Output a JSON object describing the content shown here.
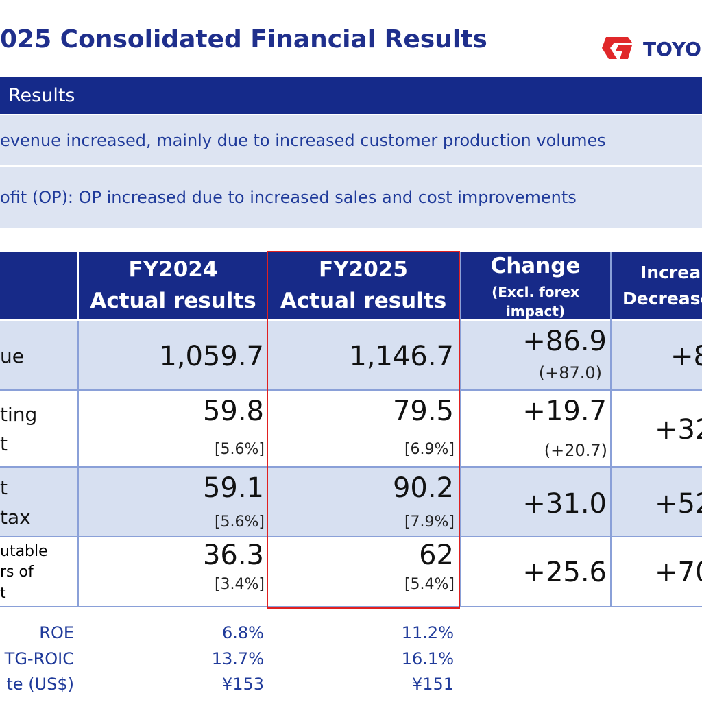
{
  "header": {
    "title": "025 Consolidated Financial Results",
    "logo": "TOYO"
  },
  "section": {
    "title": "Results",
    "bullets": [
      "evenue increased, mainly due to increased customer production volumes",
      "ofit (OP): OP increased due to increased sales and cost improvements"
    ]
  },
  "table": {
    "columns": [
      {
        "title": "FY2024",
        "subtitle": "Actual results"
      },
      {
        "title": "FY2025",
        "subtitle": "Actual results"
      },
      {
        "title": "Change",
        "note": "(Excl. forex",
        "note2": "impact)"
      },
      {
        "title": "Increa",
        "subtitle": "Decrease"
      }
    ],
    "rows": [
      {
        "label": [
          "ue"
        ],
        "fy2024": "1,059.7",
        "fy2025": "1,146.7",
        "change": "+86.9",
        "change_note": "(+87.0)",
        "rate": "+8"
      },
      {
        "label": [
          "ting",
          "t"
        ],
        "fy2024": "59.8",
        "fy2024_margin": "[5.6%]",
        "fy2025": "79.5",
        "fy2025_margin": "[6.9%]",
        "change": "+19.7",
        "change_note": "(+20.7)",
        "rate": "+32"
      },
      {
        "label": [
          "t",
          "tax"
        ],
        "fy2024": "59.1",
        "fy2024_margin": "[5.6%]",
        "fy2025": "90.2",
        "fy2025_margin": "[7.9%]",
        "change": "+31.0",
        "rate": "+52"
      },
      {
        "label": [
          "utable",
          "rs of",
          "t"
        ],
        "fy2024": "36.3",
        "fy2024_margin": "[3.4%]",
        "fy2025": "62",
        "fy2025_margin": "[5.4%]",
        "change": "+25.6",
        "rate": "+70"
      }
    ]
  },
  "metrics": [
    {
      "label": "ROE",
      "fy2024": "6.8%",
      "fy2025": "11.2%"
    },
    {
      "label": "TG-ROIC",
      "fy2024": "13.7%",
      "fy2025": "16.1%"
    },
    {
      "label": "te (US$)",
      "fy2024": "¥153",
      "fy2025": "¥151"
    }
  ]
}
